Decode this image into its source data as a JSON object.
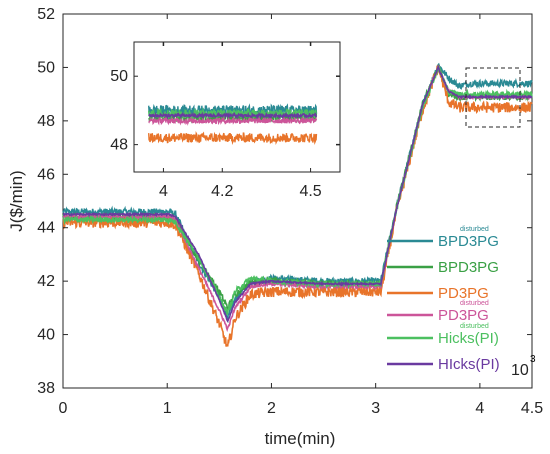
{
  "chart_data": {
    "type": "line",
    "xlabel": "time(min)",
    "ylabel": "J($/min)",
    "xlim": [
      0,
      4.5
    ],
    "ylim": [
      38,
      52
    ],
    "x_ticks": [
      "0",
      "1",
      "2",
      "3",
      "4",
      "4.5"
    ],
    "y_ticks": [
      "38",
      "40",
      "42",
      "44",
      "46",
      "48",
      "50",
      "52"
    ],
    "x_tick_values": [
      0,
      1,
      2,
      3,
      4,
      4.5
    ],
    "y_tick_values": [
      38,
      40,
      42,
      44,
      46,
      48,
      50,
      52
    ],
    "x_scale_label": "10",
    "x_scale_exp": "3",
    "grid": false,
    "legend_position": "bottom-right",
    "series": [
      {
        "name": "BPD3PG",
        "superscript": "disturbed",
        "color": "#2a8a94",
        "x": [
          0,
          1.02,
          1.08,
          1.3,
          1.5,
          1.58,
          1.65,
          1.8,
          2.0,
          2.5,
          3.05,
          3.2,
          3.45,
          3.6,
          3.7,
          3.8,
          3.9,
          4.0,
          4.5
        ],
        "values": [
          44.6,
          44.6,
          44.5,
          42.7,
          41.4,
          40.6,
          41.3,
          42.0,
          42.1,
          42.0,
          42.0,
          44.8,
          48.6,
          50.1,
          49.6,
          49.3,
          49.4,
          49.4,
          49.4
        ]
      },
      {
        "name": "BPD3PG",
        "superscript": "",
        "color": "#3aa045",
        "x": [
          0,
          1.02,
          1.08,
          1.3,
          1.5,
          1.58,
          1.65,
          1.8,
          2.0,
          2.5,
          3.05,
          3.2,
          3.45,
          3.6,
          3.7,
          3.8,
          3.9,
          4.0,
          4.5
        ],
        "values": [
          44.4,
          44.4,
          44.3,
          42.8,
          41.6,
          41.0,
          41.5,
          42.0,
          42.0,
          41.9,
          41.9,
          44.8,
          48.6,
          50.0,
          49.0,
          48.9,
          48.9,
          48.9,
          48.9
        ]
      },
      {
        "name": "PD3PG",
        "superscript": "",
        "color": "#e8742a",
        "x": [
          0,
          1.02,
          1.08,
          1.3,
          1.5,
          1.58,
          1.65,
          1.8,
          2.0,
          2.5,
          3.05,
          3.2,
          3.45,
          3.6,
          3.7,
          3.8,
          3.9,
          4.0,
          4.5
        ],
        "values": [
          44.2,
          44.2,
          44.1,
          42.3,
          40.4,
          39.5,
          40.6,
          41.5,
          41.6,
          41.6,
          41.6,
          44.6,
          48.4,
          50.0,
          48.7,
          48.5,
          48.5,
          48.5,
          48.5
        ]
      },
      {
        "name": "PD3PG",
        "superscript": "disturbed",
        "color": "#cc5599",
        "x": [
          0,
          1.02,
          1.08,
          1.3,
          1.5,
          1.58,
          1.65,
          1.8,
          2.0,
          2.5,
          3.05,
          3.2,
          3.45,
          3.6,
          3.7,
          3.8,
          3.9,
          4.0,
          4.5
        ],
        "values": [
          44.4,
          44.4,
          44.3,
          42.5,
          40.9,
          40.2,
          41.0,
          41.8,
          41.9,
          41.8,
          41.8,
          44.7,
          48.5,
          50.0,
          49.1,
          48.9,
          48.9,
          48.9,
          48.9
        ]
      },
      {
        "name": "Hicks(PI)",
        "superscript": "disturbed",
        "color": "#4cc060",
        "x": [
          0,
          1.02,
          1.08,
          1.3,
          1.5,
          1.58,
          1.65,
          1.8,
          2.0,
          2.5,
          3.05,
          3.2,
          3.45,
          3.6,
          3.7,
          3.8,
          3.9,
          4.0,
          4.5
        ],
        "values": [
          44.3,
          44.3,
          44.2,
          42.9,
          41.4,
          40.8,
          41.6,
          42.1,
          42.0,
          41.9,
          41.9,
          44.7,
          48.5,
          50.0,
          49.1,
          49.0,
          49.0,
          49.0,
          49.0
        ]
      },
      {
        "name": "HIcks(PI)",
        "superscript": "",
        "color": "#6a3aa0",
        "x": [
          0,
          1.02,
          1.08,
          1.3,
          1.5,
          1.58,
          1.65,
          1.8,
          2.0,
          2.5,
          3.05,
          3.2,
          3.45,
          3.6,
          3.7,
          3.8,
          3.9,
          4.0,
          4.5
        ],
        "values": [
          44.5,
          44.5,
          44.4,
          43.0,
          41.3,
          40.5,
          41.2,
          41.9,
          42.0,
          41.9,
          41.9,
          44.7,
          48.6,
          50.0,
          49.1,
          48.9,
          48.9,
          48.9,
          48.9
        ]
      }
    ],
    "inset": {
      "xlim": [
        3.9,
        4.6
      ],
      "ylim": [
        47.2,
        51.0
      ],
      "x_ticks": [
        "4",
        "4.2",
        "4.5"
      ],
      "x_tick_values": [
        4,
        4.2,
        4.5
      ],
      "y_ticks": [
        "48",
        "50"
      ],
      "y_tick_values": [
        48,
        50
      ],
      "series_values": [
        49.0,
        48.8,
        48.2,
        48.7,
        48.9,
        48.85
      ],
      "noise": [
        0.15,
        0.12,
        0.14,
        0.08,
        0.13,
        0.05
      ]
    }
  }
}
